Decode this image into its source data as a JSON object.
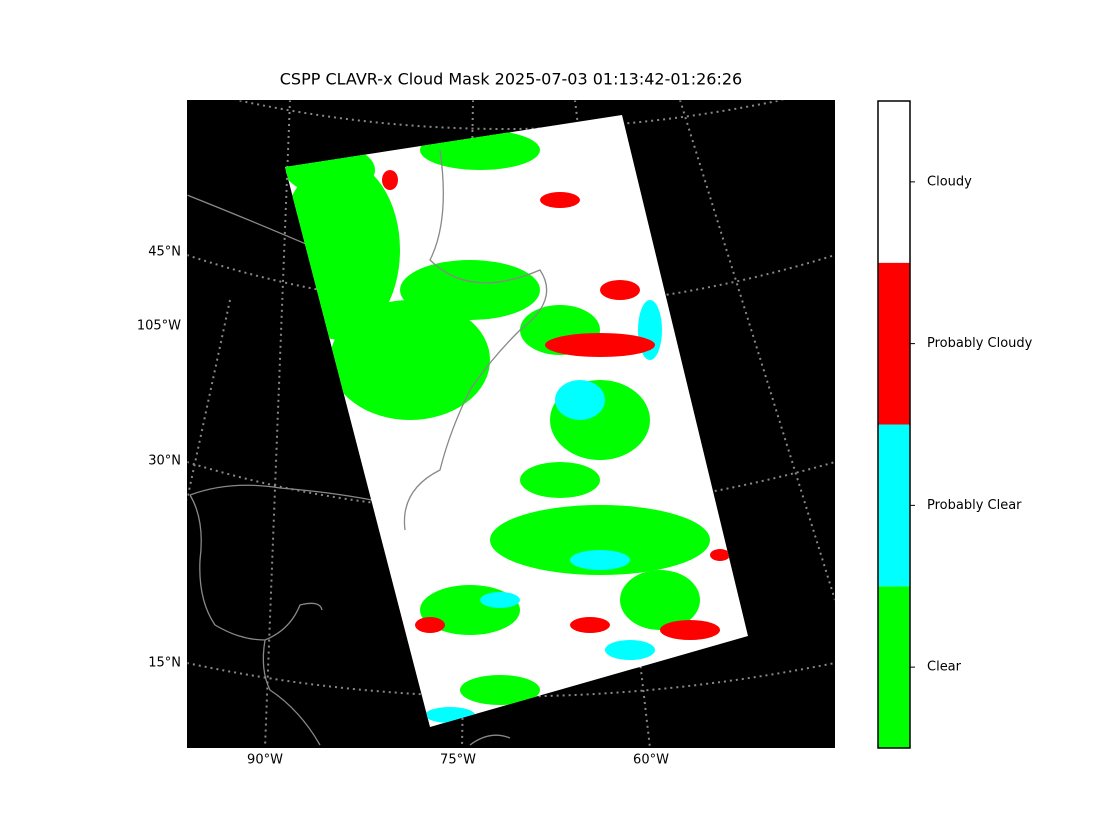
{
  "title": "CSPP CLAVR-x Cloud Mask 2025-07-03 01:13:42-01:26:26",
  "map": {
    "lat_labels": [
      "45°N",
      "105°W",
      "30°N",
      "15°N"
    ],
    "lon_labels": [
      "90°W",
      "75°W",
      "60°W"
    ],
    "background": "#000000"
  },
  "colorbar": {
    "categories": [
      {
        "label": "Clear",
        "color": "#00ff00"
      },
      {
        "label": "Probably Clear",
        "color": "#00ffff"
      },
      {
        "label": "Probably Cloudy",
        "color": "#ff0000"
      },
      {
        "label": "Cloudy",
        "color": "#ffffff"
      }
    ]
  }
}
